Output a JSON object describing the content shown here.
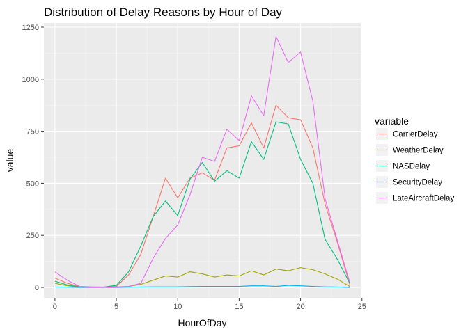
{
  "chart_data": {
    "type": "line",
    "title": "Distribution of Delay Reasons by Hour of Day",
    "xlabel": "HourOfDay",
    "ylabel": "value",
    "xlim": [
      -0.9,
      24.9
    ],
    "ylim": [
      -50,
      1270
    ],
    "xticks": [
      0,
      5,
      10,
      15,
      20,
      25
    ],
    "xtick_labels": [
      "0",
      "5",
      "10",
      "15",
      "20",
      "25"
    ],
    "yticks": [
      0,
      250,
      500,
      750,
      1000,
      1250
    ],
    "ytick_labels": [
      "0",
      "250",
      "500",
      "750",
      "1000",
      "1250"
    ],
    "grid": true,
    "legend_position": "right",
    "legend_title": "variable",
    "background": "#ebebeb",
    "x": [
      0,
      1,
      2,
      3,
      4,
      5,
      6,
      7,
      8,
      9,
      10,
      11,
      12,
      13,
      14,
      15,
      16,
      17,
      18,
      19,
      20,
      21,
      22,
      23,
      24
    ],
    "series": [
      {
        "name": "CarrierDelay",
        "color": "#F8766D",
        "values": [
          45,
          20,
          5,
          3,
          2,
          5,
          60,
          160,
          340,
          525,
          430,
          525,
          550,
          515,
          670,
          680,
          790,
          670,
          875,
          815,
          805,
          670,
          400,
          215,
          15
        ]
      },
      {
        "name": "WeatherDelay",
        "color": "#A3A500",
        "values": [
          20,
          8,
          2,
          1,
          1,
          2,
          5,
          15,
          35,
          55,
          50,
          75,
          65,
          50,
          60,
          55,
          80,
          60,
          88,
          80,
          95,
          85,
          65,
          40,
          5
        ]
      },
      {
        "name": "NASDelay",
        "color": "#00BF7D",
        "values": [
          30,
          12,
          3,
          1,
          2,
          10,
          75,
          200,
          340,
          415,
          345,
          520,
          600,
          510,
          560,
          525,
          700,
          615,
          795,
          785,
          615,
          500,
          230,
          135,
          20
        ]
      },
      {
        "name": "SecurityDelay",
        "color": "#00B0F6",
        "values": [
          2,
          1,
          0,
          0,
          0,
          0,
          1,
          2,
          3,
          3,
          3,
          4,
          5,
          5,
          5,
          5,
          8,
          8,
          5,
          10,
          8,
          5,
          3,
          2,
          0
        ]
      },
      {
        "name": "LateAircraftDelay",
        "color": "#E76BF3",
        "values": [
          75,
          35,
          5,
          2,
          1,
          3,
          5,
          20,
          140,
          235,
          300,
          445,
          625,
          605,
          760,
          705,
          920,
          825,
          1205,
          1080,
          1130,
          895,
          425,
          225,
          25
        ]
      }
    ]
  }
}
